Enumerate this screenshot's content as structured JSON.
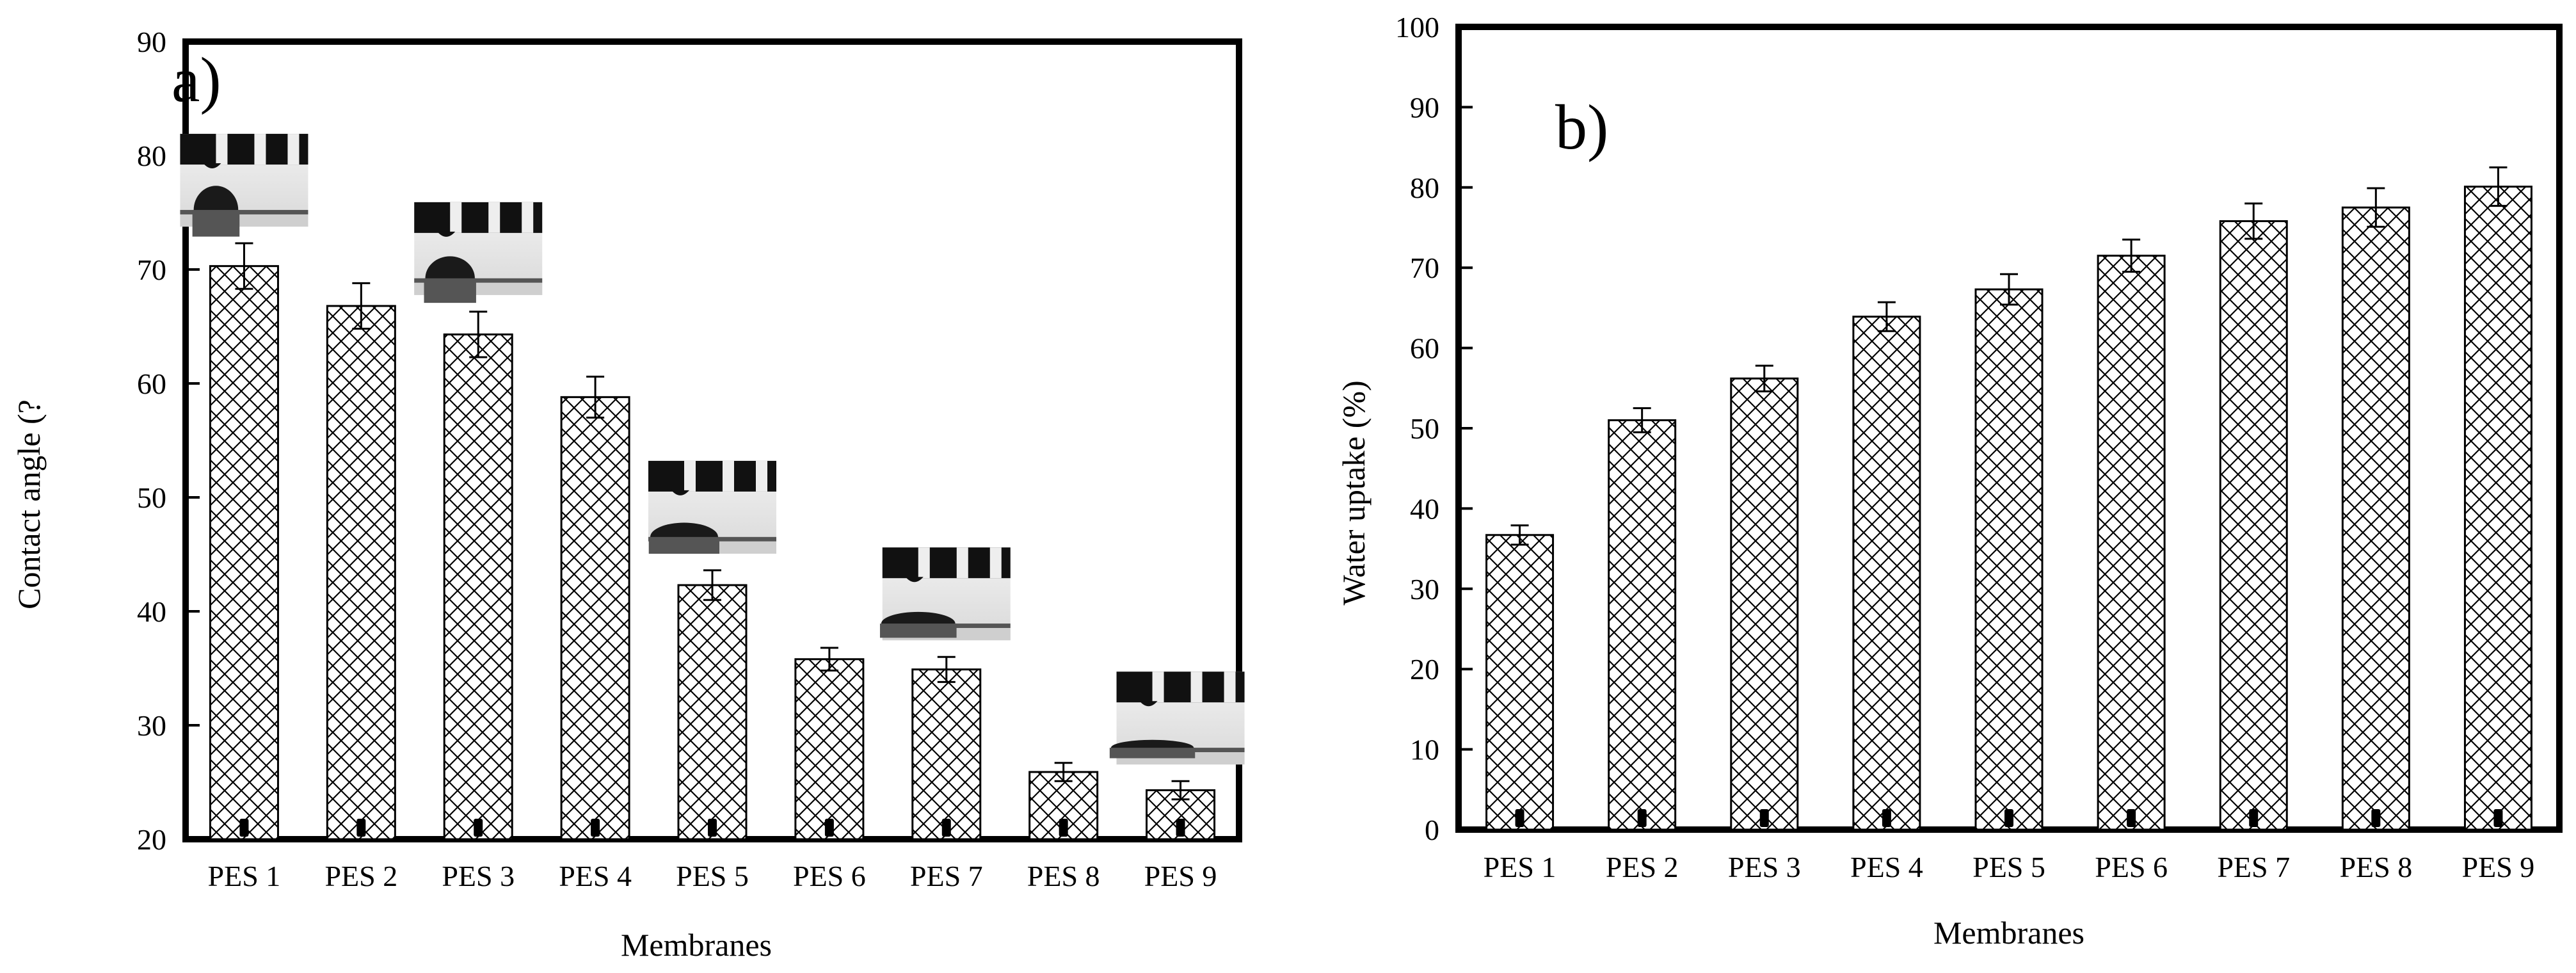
{
  "chart_data": [
    {
      "type": "bar",
      "panel_label": "a)",
      "title": "",
      "xlabel": "Membranes",
      "ylabel": "Contact angle (?",
      "categories": [
        "PES 1",
        "PES 2",
        "PES 3",
        "PES 4",
        "PES 5",
        "PES 6",
        "PES 7",
        "PES 8",
        "PES 9"
      ],
      "values": [
        70.3,
        66.8,
        64.3,
        58.8,
        42.3,
        35.8,
        34.9,
        25.9,
        24.3
      ],
      "errors": [
        2.0,
        2.0,
        2.0,
        1.8,
        1.3,
        1.0,
        1.1,
        0.8,
        0.8
      ],
      "ylim": [
        20,
        90
      ],
      "yticks": [
        20,
        30,
        40,
        50,
        60,
        70,
        80,
        90
      ],
      "inset_images": "droplet contact-angle photographs above PES 1, PES 3, PES 5, PES 7, PES 9",
      "hatch": "crosshatch"
    },
    {
      "type": "bar",
      "panel_label": "b)",
      "title": "",
      "xlabel": "Membranes",
      "ylabel": "Water uptake (%)",
      "categories": [
        "PES 1",
        "PES 2",
        "PES 3",
        "PES 4",
        "PES 5",
        "PES 6",
        "PES 7",
        "PES 8",
        "PES 9"
      ],
      "values": [
        36.7,
        51.0,
        56.2,
        63.9,
        67.3,
        71.5,
        75.8,
        77.5,
        80.1
      ],
      "errors": [
        1.2,
        1.5,
        1.6,
        1.8,
        1.9,
        2.0,
        2.2,
        2.4,
        2.4
      ],
      "ylim": [
        0,
        100
      ],
      "yticks": [
        0,
        10,
        20,
        30,
        40,
        50,
        60,
        70,
        80,
        90,
        100
      ],
      "hatch": "crosshatch"
    }
  ],
  "colors": {
    "ink": "#000000",
    "background": "#ffffff"
  }
}
